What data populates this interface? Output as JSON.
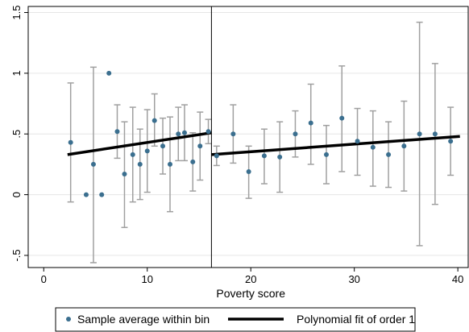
{
  "chart_data": {
    "type": "scatter",
    "title": "",
    "xlabel": "Poverty score",
    "ylabel": "",
    "xlim": [
      -1.5,
      41
    ],
    "ylim": [
      -0.6,
      1.55
    ],
    "xticks": [
      0,
      10,
      20,
      30,
      40
    ],
    "xtick_labels": [
      "0",
      "10",
      "20",
      "30",
      "40"
    ],
    "yticks": [
      -0.5,
      0,
      0.5,
      1,
      1.5
    ],
    "ytick_labels": [
      "-.5",
      "0",
      ".5",
      "1",
      "1.5"
    ],
    "grid": "horizontal",
    "cutoff_x": 16.2,
    "legend_position": "bottom",
    "legend": [
      "Sample average within bin",
      "Polynomial fit of order 1"
    ],
    "colors": {
      "point": "#3b6f8f",
      "error_bar": "#a0a0a0",
      "fit_line": "#000000",
      "cutoff_line": "#000000",
      "grid": "#e6e6e6"
    },
    "series": [
      {
        "name": "Sample average within bin",
        "type": "scatter",
        "x": [
          2.6,
          4.1,
          4.8,
          5.6,
          6.3,
          7.1,
          7.8,
          8.6,
          9.3,
          10.0,
          10.7,
          11.5,
          12.2,
          13.0,
          13.6,
          14.4,
          15.1,
          15.9,
          16.7,
          18.3,
          19.8,
          21.3,
          22.8,
          24.3,
          25.8,
          27.3,
          28.8,
          30.3,
          31.8,
          33.3,
          34.8,
          36.3,
          37.8,
          39.3
        ],
        "y": [
          0.43,
          0.0,
          0.25,
          0.0,
          1.0,
          0.52,
          0.17,
          0.33,
          0.25,
          0.36,
          0.61,
          0.4,
          0.25,
          0.5,
          0.51,
          0.27,
          0.4,
          0.52,
          0.32,
          0.5,
          0.19,
          0.32,
          0.31,
          0.5,
          0.59,
          0.33,
          0.63,
          0.44,
          0.39,
          0.33,
          0.4,
          0.5,
          0.5,
          0.44
        ],
        "ci_low": [
          -0.06,
          null,
          -0.56,
          null,
          null,
          0.3,
          -0.27,
          -0.06,
          -0.04,
          0.02,
          0.4,
          0.17,
          -0.14,
          0.28,
          0.28,
          0.03,
          0.12,
          0.42,
          0.24,
          0.26,
          -0.03,
          0.09,
          0.02,
          0.31,
          0.25,
          0.09,
          0.19,
          0.16,
          0.07,
          0.06,
          0.03,
          -0.42,
          -0.08,
          0.16
        ],
        "ci_high": [
          0.92,
          null,
          1.05,
          null,
          null,
          0.74,
          0.6,
          0.72,
          0.54,
          0.7,
          0.83,
          0.63,
          0.64,
          0.72,
          0.74,
          0.51,
          0.68,
          0.62,
          0.4,
          0.74,
          0.4,
          0.54,
          0.6,
          0.69,
          0.91,
          0.57,
          1.06,
          0.71,
          0.69,
          0.6,
          0.77,
          1.42,
          1.08,
          0.72
        ]
      },
      {
        "name": "Polynomial fit of order 1",
        "type": "line",
        "segments": [
          {
            "x": [
              2.3,
              16.2
            ],
            "y": [
              0.33,
              0.51
            ]
          },
          {
            "x": [
              16.2,
              40.2
            ],
            "y": [
              0.33,
              0.48
            ]
          }
        ]
      }
    ]
  }
}
